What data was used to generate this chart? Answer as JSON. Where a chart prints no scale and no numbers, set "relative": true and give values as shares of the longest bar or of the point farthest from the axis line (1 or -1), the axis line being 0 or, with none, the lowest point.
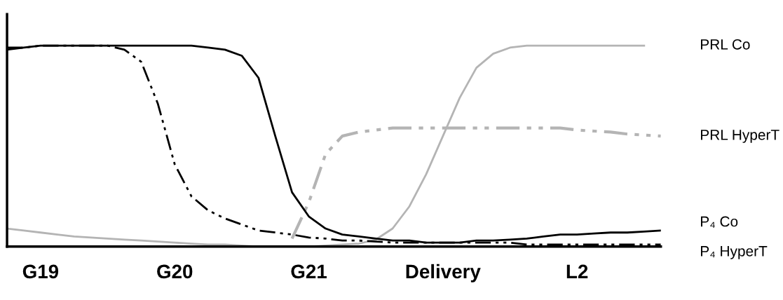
{
  "chart_data": {
    "type": "line",
    "relative": true,
    "categories": [
      null,
      null,
      "G19",
      null,
      null,
      null,
      null,
      null,
      null,
      null,
      "G20",
      null,
      null,
      null,
      null,
      null,
      null,
      null,
      "G21",
      null,
      null,
      null,
      null,
      null,
      null,
      null,
      "Delivery",
      null,
      null,
      null,
      null,
      null,
      null,
      null,
      "L2",
      null,
      null,
      null,
      null,
      null
    ],
    "grid": false,
    "legend": false,
    "marker": "none",
    "series": [
      {
        "name": "PRL Co",
        "color": "#b4b4b4",
        "line_style": "solid",
        "values": [
          0.09,
          0.08,
          0.07,
          0.06,
          0.05,
          0.045,
          0.04,
          0.035,
          0.03,
          0.025,
          0.02,
          0.015,
          0.01,
          0.01,
          0.005,
          0,
          0,
          0,
          0,
          0.005,
          0.01,
          0.015,
          0.035,
          0.09,
          0.2,
          0.36,
          0.55,
          0.74,
          0.89,
          0.96,
          0.99,
          1,
          1,
          1,
          1,
          1,
          1,
          1,
          1,
          null
        ]
      },
      {
        "name": "PRL HyperT",
        "color": "#b4b4b4",
        "line_style": "dashdotdot",
        "values": [
          null,
          null,
          null,
          null,
          null,
          null,
          null,
          null,
          null,
          null,
          null,
          null,
          null,
          null,
          null,
          null,
          null,
          0.04,
          0.22,
          0.46,
          0.55,
          0.57,
          0.58,
          0.59,
          0.59,
          0.59,
          0.59,
          0.59,
          0.59,
          0.59,
          0.59,
          0.59,
          0.59,
          0.59,
          0.58,
          0.575,
          0.57,
          0.56,
          0.555,
          0.55
        ]
      },
      {
        "name": "P₄ Co",
        "color": "#000000",
        "line_style": "solid",
        "values": [
          0.98,
          0.99,
          1,
          1,
          1,
          1,
          1,
          1,
          1,
          1,
          1,
          1,
          0.99,
          0.98,
          0.95,
          0.84,
          0.55,
          0.27,
          0.15,
          0.09,
          0.06,
          0.05,
          0.04,
          0.03,
          0.03,
          0.02,
          0.02,
          0.02,
          0.03,
          0.03,
          0.035,
          0.04,
          0.05,
          0.06,
          0.06,
          0.065,
          0.07,
          0.07,
          0.075,
          0.08
        ]
      },
      {
        "name": "P₄ HyperT",
        "color": "#000000",
        "line_style": "dashdotdot",
        "values": [
          0.99,
          0.99,
          1,
          1,
          1,
          1,
          1,
          0.98,
          0.92,
          0.71,
          0.41,
          0.25,
          0.18,
          0.14,
          0.11,
          0.08,
          0.07,
          0.06,
          0.045,
          0.04,
          0.03,
          0.03,
          0.025,
          0.02,
          0.02,
          0.02,
          0.02,
          0.02,
          0.02,
          0.02,
          0.02,
          0.01,
          0.01,
          0.01,
          0.01,
          0.01,
          0.01,
          0.01,
          0.01,
          0.01
        ]
      }
    ]
  }
}
